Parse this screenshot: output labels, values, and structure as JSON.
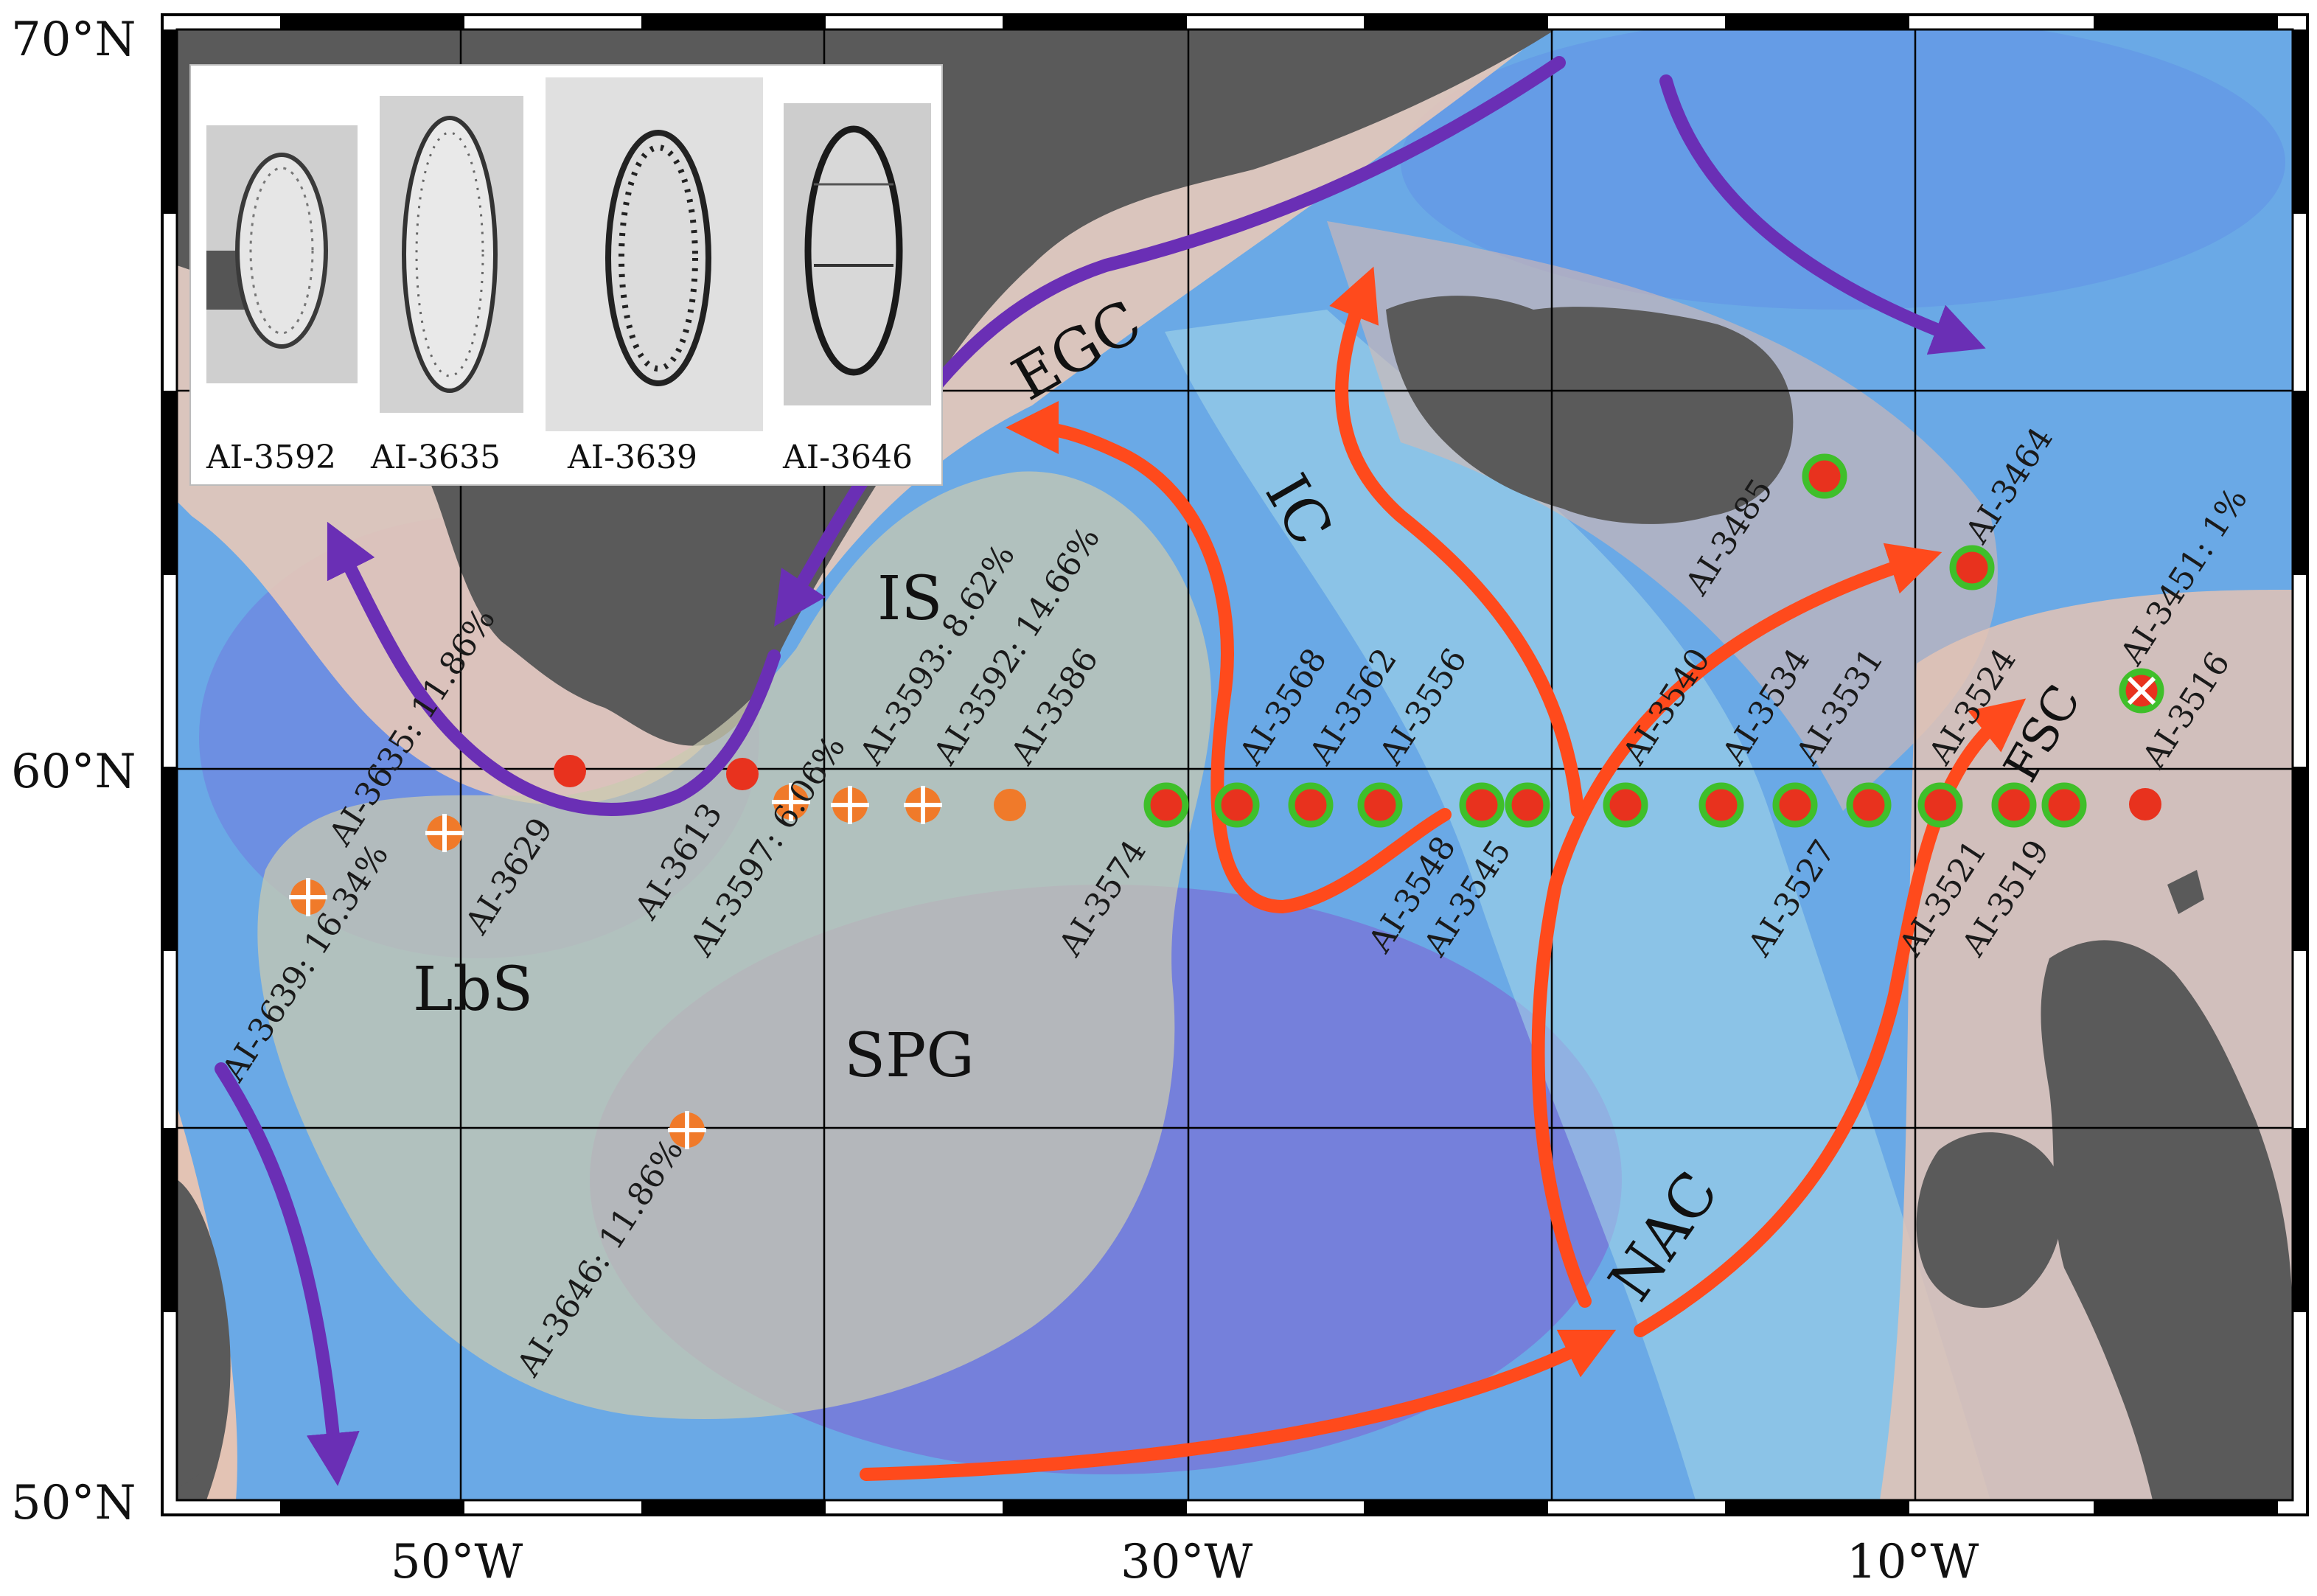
{
  "axes": {
    "lat_labels": [
      "70°N",
      "60°N",
      "50°N"
    ],
    "lon_labels": [
      "50°W",
      "30°W",
      "10°W"
    ]
  },
  "inset": {
    "captions": [
      "AI-3592",
      "AI-3635",
      "AI-3639",
      "AI-3646"
    ]
  },
  "regions": {
    "lbs": "LbS",
    "spg": "SPG",
    "is": "IS"
  },
  "currents": {
    "egc": "EGC",
    "ic": "IC",
    "nac": "NAC",
    "fsc": "FSC"
  },
  "stations": {
    "s3635": "AI-3635: 11.86%",
    "s3639": "AI-3639: 16.34%",
    "s3629": "AI-3629",
    "s3613": "AI-3613",
    "s3597": "AI-3597: 6.06%",
    "s3593": "AI-3593: 8.62%",
    "s3592": "AI-3592: 14.66%",
    "s3586": "AI-3586",
    "s3646": "AI-3646: 11.86%",
    "s3574": "AI-3574",
    "s3568": "AI-3568",
    "s3562": "AI-3562",
    "s3556": "AI-3556",
    "s3548": "AI-3548",
    "s3545": "AI-3545",
    "s3540": "AI-3540",
    "s3534": "AI-3534",
    "s3531": "AI-3531",
    "s3527": "AI-3527",
    "s3524": "AI-3524",
    "s3521": "AI-3521",
    "s3519": "AI-3519",
    "s3516": "AI-3516",
    "s3485": "AI-3485",
    "s3464": "AI-3464",
    "s3451": "AI-3451: 1%"
  },
  "colors": {
    "warm_current": "#ff4a1c",
    "cold_current": "#6a2fb5",
    "red_station": "#e8321e",
    "orange_station": "#f07a2a",
    "green_ring": "#3fbf2a",
    "land": "#5a5a5a",
    "shelf": "#e8c9b8",
    "ocean_mid": "#6aa9e6",
    "ocean_deep": "#7b6fd6"
  }
}
